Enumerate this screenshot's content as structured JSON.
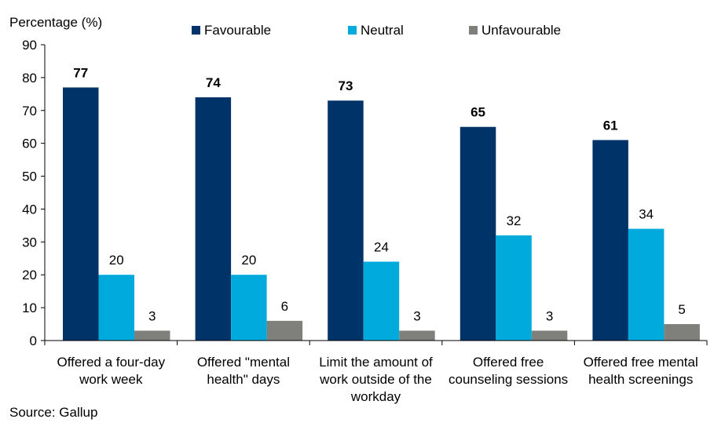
{
  "chart_data": {
    "type": "bar",
    "ylabel": "Percentage (%)",
    "ylim": [
      0,
      90
    ],
    "yticks": [
      0,
      10,
      20,
      30,
      40,
      50,
      60,
      70,
      80,
      90
    ],
    "grid": false,
    "legend_position": "top",
    "categories": [
      "Offered a four-day\nwork week",
      "Offered \"mental\nhealth\" days",
      "Limit the amount of\nwork outside of the\nworkday",
      "Offered free\ncounseling sessions",
      "Offered free mental\nhealth screenings"
    ],
    "series": [
      {
        "name": "Favourable",
        "color": "#003468",
        "values": [
          77,
          74,
          73,
          65,
          61
        ]
      },
      {
        "name": "Neutral",
        "color": "#00aadc",
        "values": [
          20,
          20,
          24,
          32,
          34
        ]
      },
      {
        "name": "Unfavourable",
        "color": "#7f7f7b",
        "values": [
          3,
          6,
          3,
          3,
          5
        ]
      }
    ],
    "source": "Source: Gallup"
  }
}
